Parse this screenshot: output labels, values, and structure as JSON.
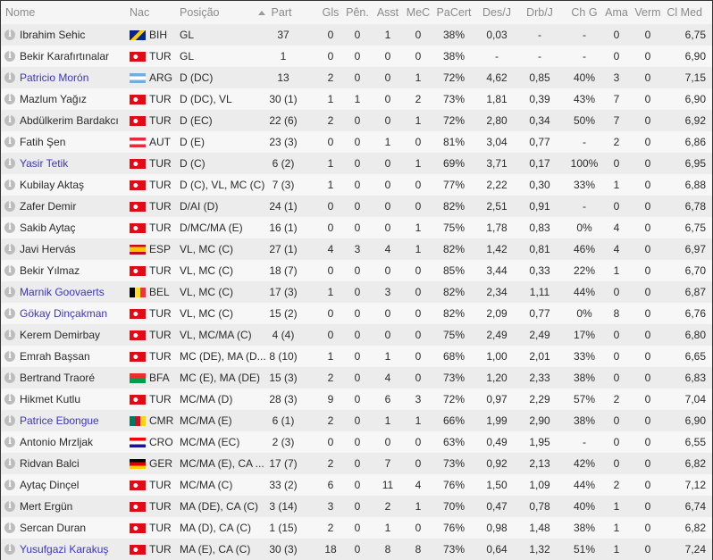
{
  "colors": {
    "link": "#3b35c4",
    "row_odd": "#ececec",
    "row_even": "#f7f7f7",
    "header_text": "#8a8a8a"
  },
  "sort": {
    "column": "Part",
    "direction": "ascending",
    "icon": "sort-ascending-icon"
  },
  "columns": [
    "Nome",
    "Nac",
    "Posição",
    "Part",
    "Gls",
    "Pên.",
    "Asst",
    "MeC",
    "PaCert",
    "Des/J",
    "Drb/J",
    "Ch G",
    "Ama",
    "Verm",
    "Cl Med"
  ],
  "rows": [
    {
      "name": "Ibrahim Sehic",
      "nac": "BIH",
      "pos": "GL",
      "part": "37",
      "gls": "0",
      "pen": "0",
      "asst": "1",
      "mec": "0",
      "pacert": "38%",
      "desj": "0,03",
      "drbj": "-",
      "chg": "-",
      "ama": "0",
      "verm": "0",
      "clmed": "6,75",
      "link": false
    },
    {
      "name": "Bekir Karafırtınalar",
      "nac": "TUR",
      "pos": "GL",
      "part": "1",
      "gls": "0",
      "pen": "0",
      "asst": "0",
      "mec": "0",
      "pacert": "38%",
      "desj": "-",
      "drbj": "-",
      "chg": "-",
      "ama": "0",
      "verm": "0",
      "clmed": "6,90",
      "link": false
    },
    {
      "name": "Patricio Morón",
      "nac": "ARG",
      "pos": "D (DC)",
      "part": "13",
      "gls": "2",
      "pen": "0",
      "asst": "0",
      "mec": "1",
      "pacert": "72%",
      "desj": "4,62",
      "drbj": "0,85",
      "chg": "40%",
      "ama": "3",
      "verm": "0",
      "clmed": "7,15",
      "link": true
    },
    {
      "name": "Mazlum Yağız",
      "nac": "TUR",
      "pos": "D (DC), VL",
      "part": "30 (1)",
      "gls": "1",
      "pen": "1",
      "asst": "0",
      "mec": "2",
      "pacert": "73%",
      "desj": "1,81",
      "drbj": "0,39",
      "chg": "43%",
      "ama": "7",
      "verm": "0",
      "clmed": "6,90",
      "link": false
    },
    {
      "name": "Abdülkerim Bardakcı",
      "nac": "TUR",
      "pos": "D (EC)",
      "part": "22 (6)",
      "gls": "2",
      "pen": "0",
      "asst": "0",
      "mec": "1",
      "pacert": "72%",
      "desj": "2,80",
      "drbj": "0,34",
      "chg": "50%",
      "ama": "7",
      "verm": "0",
      "clmed": "6,92",
      "link": false
    },
    {
      "name": "Fatih Şen",
      "nac": "AUT",
      "pos": "D (E)",
      "part": "23 (3)",
      "gls": "0",
      "pen": "0",
      "asst": "1",
      "mec": "0",
      "pacert": "81%",
      "desj": "3,04",
      "drbj": "0,77",
      "chg": "-",
      "ama": "2",
      "verm": "0",
      "clmed": "6,86",
      "link": false
    },
    {
      "name": "Yasir Tetik",
      "nac": "TUR",
      "pos": "D (C)",
      "part": "6 (2)",
      "gls": "1",
      "pen": "0",
      "asst": "0",
      "mec": "1",
      "pacert": "69%",
      "desj": "3,71",
      "drbj": "0,17",
      "chg": "100%",
      "ama": "0",
      "verm": "0",
      "clmed": "6,95",
      "link": true
    },
    {
      "name": "Kubilay Aktaş",
      "nac": "TUR",
      "pos": "D (C), VL, MC (C)",
      "part": "7 (3)",
      "gls": "1",
      "pen": "0",
      "asst": "0",
      "mec": "0",
      "pacert": "77%",
      "desj": "2,22",
      "drbj": "0,30",
      "chg": "33%",
      "ama": "1",
      "verm": "0",
      "clmed": "6,88",
      "link": false
    },
    {
      "name": "Zafer Demir",
      "nac": "TUR",
      "pos": "D/AI (D)",
      "part": "24 (1)",
      "gls": "0",
      "pen": "0",
      "asst": "0",
      "mec": "0",
      "pacert": "82%",
      "desj": "2,51",
      "drbj": "0,91",
      "chg": "-",
      "ama": "0",
      "verm": "0",
      "clmed": "6,78",
      "link": false
    },
    {
      "name": "Sakib Aytaç",
      "nac": "TUR",
      "pos": "D/MC/MA (E)",
      "part": "16 (1)",
      "gls": "0",
      "pen": "0",
      "asst": "0",
      "mec": "1",
      "pacert": "75%",
      "desj": "1,78",
      "drbj": "0,83",
      "chg": "0%",
      "ama": "4",
      "verm": "0",
      "clmed": "6,75",
      "link": false
    },
    {
      "name": "Javi Hervás",
      "nac": "ESP",
      "pos": "VL, MC (C)",
      "part": "27 (1)",
      "gls": "4",
      "pen": "3",
      "asst": "4",
      "mec": "1",
      "pacert": "82%",
      "desj": "1,42",
      "drbj": "0,81",
      "chg": "46%",
      "ama": "4",
      "verm": "0",
      "clmed": "6,97",
      "link": false
    },
    {
      "name": "Bekir Yılmaz",
      "nac": "TUR",
      "pos": "VL, MC (C)",
      "part": "18 (7)",
      "gls": "0",
      "pen": "0",
      "asst": "0",
      "mec": "0",
      "pacert": "85%",
      "desj": "3,44",
      "drbj": "0,33",
      "chg": "22%",
      "ama": "1",
      "verm": "0",
      "clmed": "6,70",
      "link": false
    },
    {
      "name": "Marnik Goovaerts",
      "nac": "BEL",
      "pos": "VL, MC (C)",
      "part": "17 (3)",
      "gls": "1",
      "pen": "0",
      "asst": "3",
      "mec": "0",
      "pacert": "82%",
      "desj": "2,34",
      "drbj": "1,11",
      "chg": "44%",
      "ama": "0",
      "verm": "0",
      "clmed": "6,87",
      "link": true
    },
    {
      "name": "Gökay Dinçakman",
      "nac": "TUR",
      "pos": "VL, MC (C)",
      "part": "15 (2)",
      "gls": "0",
      "pen": "0",
      "asst": "0",
      "mec": "0",
      "pacert": "82%",
      "desj": "2,09",
      "drbj": "0,77",
      "chg": "0%",
      "ama": "8",
      "verm": "0",
      "clmed": "6,76",
      "link": true
    },
    {
      "name": "Kerem Demirbay",
      "nac": "TUR",
      "pos": "VL, MC/MA (C)",
      "part": "4 (4)",
      "gls": "0",
      "pen": "0",
      "asst": "0",
      "mec": "0",
      "pacert": "75%",
      "desj": "2,49",
      "drbj": "2,49",
      "chg": "17%",
      "ama": "0",
      "verm": "0",
      "clmed": "6,80",
      "link": false
    },
    {
      "name": "Emrah Başsan",
      "nac": "TUR",
      "pos": "MC (DE), MA (D...",
      "part": "8 (10)",
      "gls": "1",
      "pen": "0",
      "asst": "1",
      "mec": "0",
      "pacert": "68%",
      "desj": "1,00",
      "drbj": "2,01",
      "chg": "33%",
      "ama": "0",
      "verm": "0",
      "clmed": "6,65",
      "link": false
    },
    {
      "name": "Bertrand Traoré",
      "nac": "BFA",
      "pos": "MC (E), MA (DE)",
      "part": "15 (3)",
      "gls": "2",
      "pen": "0",
      "asst": "4",
      "mec": "0",
      "pacert": "73%",
      "desj": "1,20",
      "drbj": "2,33",
      "chg": "38%",
      "ama": "0",
      "verm": "0",
      "clmed": "6,83",
      "link": false
    },
    {
      "name": "Hikmet Kutlu",
      "nac": "TUR",
      "pos": "MC/MA (D)",
      "part": "28 (3)",
      "gls": "9",
      "pen": "0",
      "asst": "6",
      "mec": "3",
      "pacert": "72%",
      "desj": "0,97",
      "drbj": "2,29",
      "chg": "57%",
      "ama": "2",
      "verm": "0",
      "clmed": "7,04",
      "link": false
    },
    {
      "name": "Patrice Ebongue",
      "nac": "CMR",
      "pos": "MC/MA (E)",
      "part": "6 (1)",
      "gls": "2",
      "pen": "0",
      "asst": "1",
      "mec": "1",
      "pacert": "66%",
      "desj": "1,99",
      "drbj": "2,90",
      "chg": "38%",
      "ama": "0",
      "verm": "0",
      "clmed": "6,90",
      "link": true
    },
    {
      "name": "Antonio Mrzljak",
      "nac": "CRO",
      "pos": "MC/MA (EC)",
      "part": "2 (3)",
      "gls": "0",
      "pen": "0",
      "asst": "0",
      "mec": "0",
      "pacert": "63%",
      "desj": "0,49",
      "drbj": "1,95",
      "chg": "-",
      "ama": "0",
      "verm": "0",
      "clmed": "6,55",
      "link": false
    },
    {
      "name": "Ridvan Balci",
      "nac": "GER",
      "pos": "MC/MA (E), CA ...",
      "part": "17 (7)",
      "gls": "2",
      "pen": "0",
      "asst": "7",
      "mec": "0",
      "pacert": "73%",
      "desj": "0,92",
      "drbj": "2,13",
      "chg": "42%",
      "ama": "0",
      "verm": "0",
      "clmed": "6,82",
      "link": false
    },
    {
      "name": "Aytaç Dinçel",
      "nac": "TUR",
      "pos": "MC/MA (C)",
      "part": "33 (2)",
      "gls": "6",
      "pen": "0",
      "asst": "11",
      "mec": "4",
      "pacert": "76%",
      "desj": "1,50",
      "drbj": "1,09",
      "chg": "44%",
      "ama": "2",
      "verm": "0",
      "clmed": "7,12",
      "link": false
    },
    {
      "name": "Mert Ergün",
      "nac": "TUR",
      "pos": "MA (DE), CA (C)",
      "part": "3 (14)",
      "gls": "3",
      "pen": "0",
      "asst": "2",
      "mec": "1",
      "pacert": "70%",
      "desj": "0,47",
      "drbj": "0,78",
      "chg": "40%",
      "ama": "1",
      "verm": "0",
      "clmed": "6,74",
      "link": false
    },
    {
      "name": "Sercan Duran",
      "nac": "TUR",
      "pos": "MA (D), CA (C)",
      "part": "1 (15)",
      "gls": "2",
      "pen": "0",
      "asst": "1",
      "mec": "0",
      "pacert": "76%",
      "desj": "0,98",
      "drbj": "1,48",
      "chg": "38%",
      "ama": "1",
      "verm": "0",
      "clmed": "6,82",
      "link": false
    },
    {
      "name": "Yusufgazi Karakuş",
      "nac": "TUR",
      "pos": "MA (E), CA (C)",
      "part": "30 (3)",
      "gls": "18",
      "pen": "0",
      "asst": "8",
      "mec": "8",
      "pacert": "73%",
      "desj": "0,64",
      "drbj": "1,32",
      "chg": "51%",
      "ama": "1",
      "verm": "0",
      "clmed": "7,24",
      "link": true
    }
  ]
}
